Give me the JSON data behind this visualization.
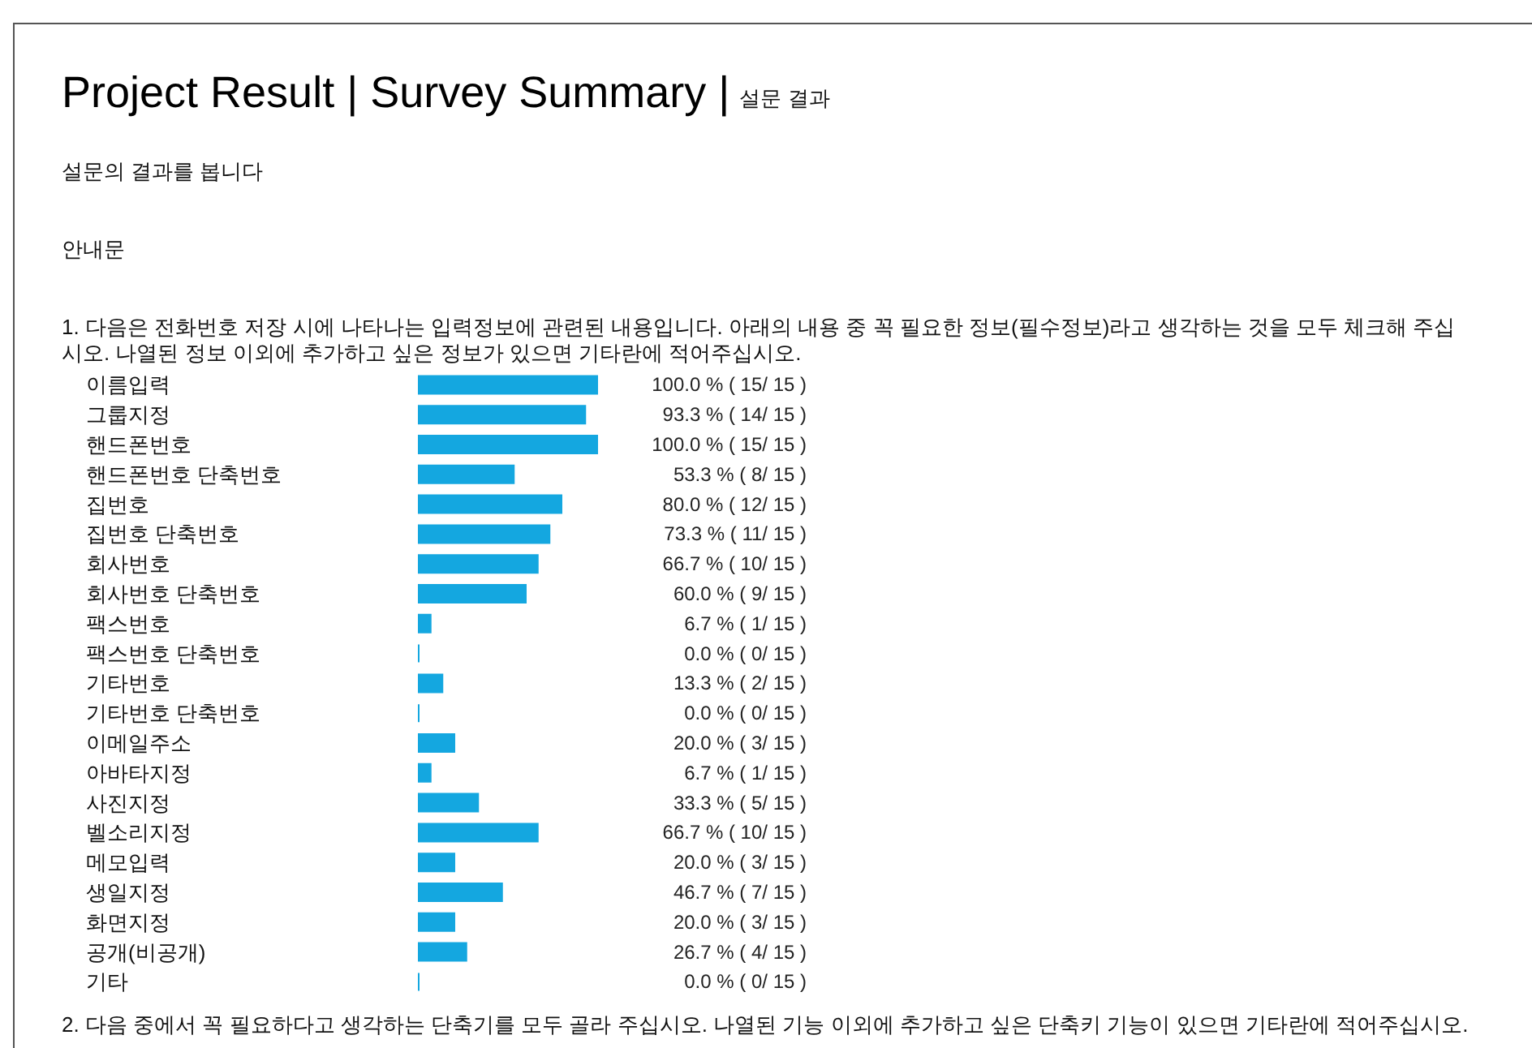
{
  "chart_data": {
    "type": "bar",
    "orientation": "horizontal",
    "title": "Project Result | Survey Summary |",
    "subtitle": "설문 결과",
    "annotations": [
      "설문의 결과를 봅니다",
      "안내문",
      "1. 다음은 전화번호 저장 시에 나타나는 입력정보에 관련된 내용입니다. 아래의 내용 중 꼭 필요한 정보(필수정보)라고 생각하는 것을 모두 체크해 주십시오. 나열된 정보 이외에 추가하고 싶은 정보가 있으면 기타란에 적어주십시오.",
      "2. 다음 중에서 꼭 필요하다고 생각하는 단축기를 모두 골라 주십시오. 나열된 기능 이외에 추가하고 싶은 단축키 기능이 있으면 기타란에 적어주십시오."
    ],
    "categories": [
      "이름입력",
      "그룹지정",
      "핸드폰번호",
      "핸드폰번호 단축번호",
      "집번호",
      "집번호 단축번호",
      "회사번호",
      "회사번호 단축번호",
      "팩스번호",
      "팩스번호 단축번호",
      "기타번호",
      "기타번호 단축번호",
      "이메일주소",
      "아바타지정",
      "사진지정",
      "벨소리지정",
      "메모입력",
      "생일지정",
      "화면지정",
      "공개(비공개)",
      "기타"
    ],
    "values": [
      100,
      93.3,
      100,
      53.3,
      80,
      73.3,
      66.7,
      60,
      6.7,
      0,
      13.3,
      0,
      20,
      6.7,
      33.3,
      66.7,
      20,
      46.7,
      20,
      26.7,
      0
    ],
    "value_labels": [
      "100.0 % ( 15/ 15 )",
      "93.3 % ( 14/ 15 )",
      "100.0 % ( 15/ 15 )",
      "53.3 % ( 8/ 15 )",
      "80.0 % ( 12/ 15 )",
      "73.3 % ( 11/ 15 )",
      "66.7 % ( 10/ 15 )",
      "60.0 % ( 9/ 15 )",
      "6.7 % ( 1/ 15 )",
      "0.0 % ( 0/ 15 )",
      "13.3 % ( 2/ 15 )",
      "0.0 % ( 0/ 15 )",
      "20.0 % ( 3/ 15 )",
      "6.7 % ( 1/ 15 )",
      "33.3 % ( 5/ 15 )",
      "66.7 % ( 10/ 15 )",
      "20.0 % ( 3/ 15 )",
      "46.7 % ( 7/ 15 )",
      "20.0 % ( 3/ 15 )",
      "26.7 % ( 4/ 15 )",
      "0.0 % ( 0/ 15 )"
    ],
    "color": "#14a7e0"
  }
}
